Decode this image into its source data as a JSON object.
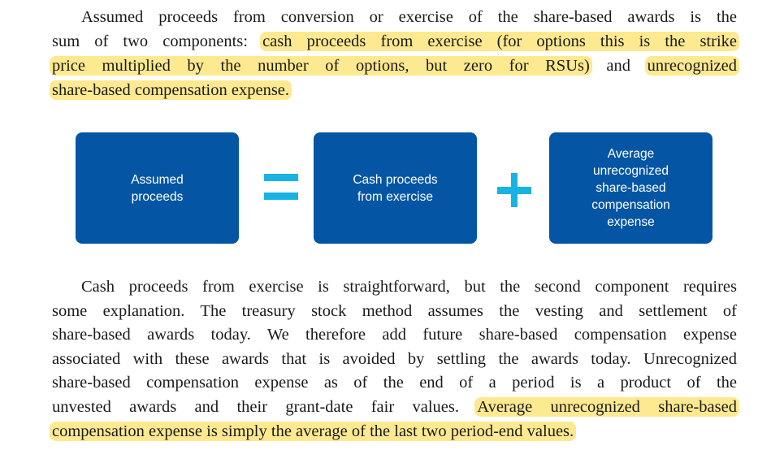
{
  "paragraph1": {
    "lines": [
      [
        {
          "text": "Assumed proceeds from conversion or exercise of the share-based awards is the",
          "hl": false
        }
      ],
      [
        {
          "text": "sum of two components: ",
          "hl": false
        },
        {
          "text": "cash proceeds from exercise (for options this is the strike",
          "hl": true
        }
      ],
      [
        {
          "text": "price multiplied by the number of options, but zero for RSUs)",
          "hl": true
        },
        {
          "text": " and ",
          "hl": false
        },
        {
          "text": "unrecognized",
          "hl": true
        }
      ],
      [
        {
          "text": "share-based compensation expense.",
          "hl": true
        }
      ]
    ]
  },
  "diagram": {
    "box1": [
      "Assumed",
      "proceeds"
    ],
    "operator1": "equals",
    "box2": [
      "Cash proceeds",
      "from exercise"
    ],
    "operator2": "plus",
    "box3": [
      "Average",
      "unrecognized",
      "share-based",
      "compensation",
      "expense"
    ],
    "box_color": "#0456a4",
    "operator_color": "#17b4e3",
    "highlight_color": "#fde98f"
  },
  "paragraph2": {
    "lines": [
      [
        {
          "text": "Cash proceeds from exercise is straightforward, but the second component requires",
          "hl": false
        }
      ],
      [
        {
          "text": "some explanation. The treasury stock method assumes the vesting and settlement of",
          "hl": false
        }
      ],
      [
        {
          "text": "share-based awards today. We therefore add future share-based compensation expense",
          "hl": false
        }
      ],
      [
        {
          "text": "associated with these awards that is avoided by settling the awards today. Unrecognized",
          "hl": false
        }
      ],
      [
        {
          "text": "share-based compensation expense as of the end of a period is a product of the",
          "hl": false
        }
      ],
      [
        {
          "text": "unvested awards and their grant-date fair values. ",
          "hl": false
        },
        {
          "text": "Average unrecognized share-based",
          "hl": true
        }
      ],
      [
        {
          "text": "compensation expense is simply the average of the last two period-end values.",
          "hl": true
        }
      ]
    ]
  }
}
